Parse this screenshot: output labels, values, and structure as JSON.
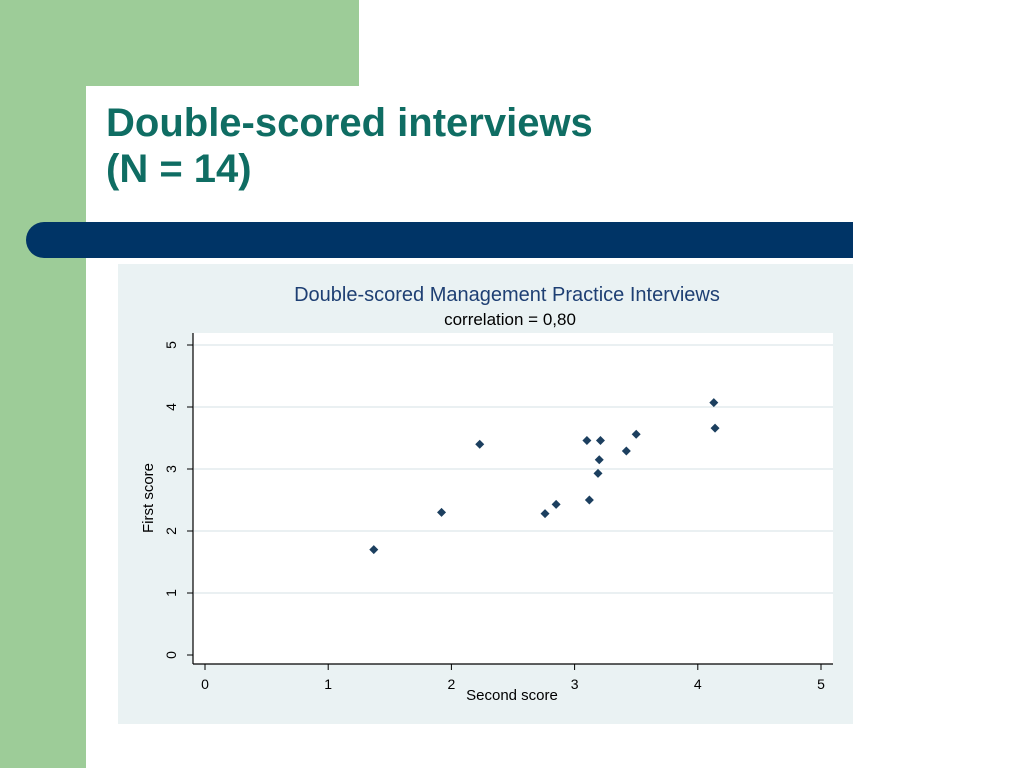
{
  "slide": {
    "title_line1": "Double-scored interviews",
    "title_line2": "(N = 14)"
  },
  "colors": {
    "title": "#0f6d63",
    "green_bar": "#9dcc98",
    "blue_band": "#003466",
    "chart_background": "#eaf2f3",
    "plot_background": "#ffffff",
    "marker": "#1c3f5f",
    "chart_title": "#1e3f73"
  },
  "chart_data": {
    "type": "scatter",
    "title": "Double-scored Management Practice Interviews",
    "subtitle": "correlation = 0,80",
    "xlabel": "Second score",
    "ylabel": "First score",
    "xlim": [
      0,
      5
    ],
    "ylim": [
      0,
      5
    ],
    "xticks": [
      "0",
      "1",
      "2",
      "3",
      "4",
      "5"
    ],
    "yticks": [
      "0",
      "1",
      "2",
      "3",
      "4",
      "5"
    ],
    "grid": "horizontal",
    "marker": "diamond",
    "points": [
      {
        "x": 1.37,
        "y": 1.7
      },
      {
        "x": 1.92,
        "y": 2.3
      },
      {
        "x": 2.23,
        "y": 3.4
      },
      {
        "x": 2.76,
        "y": 2.28
      },
      {
        "x": 2.85,
        "y": 2.43
      },
      {
        "x": 3.1,
        "y": 3.46
      },
      {
        "x": 3.12,
        "y": 2.5
      },
      {
        "x": 3.19,
        "y": 2.93
      },
      {
        "x": 3.2,
        "y": 3.15
      },
      {
        "x": 3.21,
        "y": 3.46
      },
      {
        "x": 3.42,
        "y": 3.29
      },
      {
        "x": 3.5,
        "y": 3.56
      },
      {
        "x": 4.13,
        "y": 4.07
      },
      {
        "x": 4.14,
        "y": 3.66
      }
    ]
  }
}
